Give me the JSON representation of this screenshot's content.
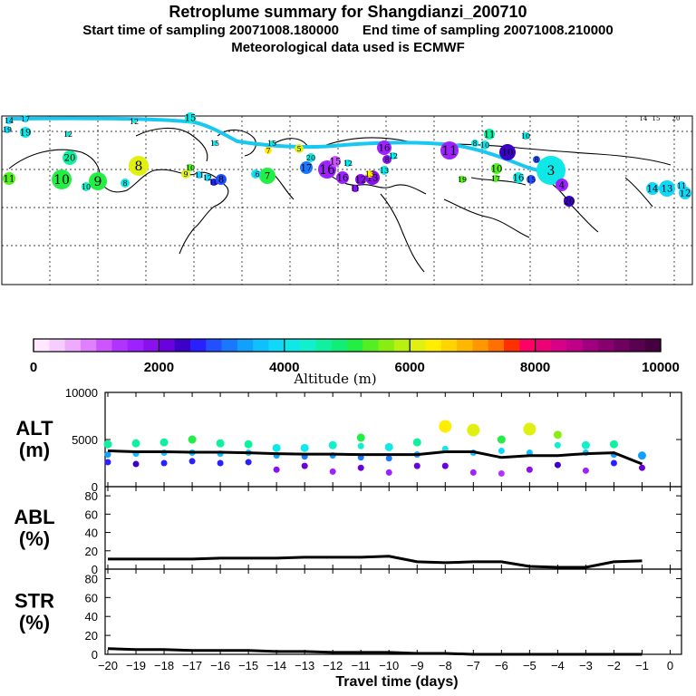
{
  "header": {
    "title": "Retroplume summary for Shangdianzi_200710",
    "start": "Start time of sampling 20071008.180000",
    "end": "End time of sampling 20071008.210000",
    "met": "Meteorological data used is ECMWF"
  },
  "colorbar": {
    "label": "Altitude  (m)",
    "ticks": [
      "0",
      "2000",
      "4000",
      "6000",
      "8000",
      "10000"
    ],
    "colors": [
      "#ffe8ff",
      "#f7ccff",
      "#eeaaff",
      "#e080ff",
      "#cc55ff",
      "#b033ff",
      "#9d22ff",
      "#8a11ee",
      "#6a00dd",
      "#3c00c8",
      "#2a20ff",
      "#2250ff",
      "#1878ff",
      "#12a0ff",
      "#0fc0ff",
      "#10d8f8",
      "#10e8e8",
      "#10f0cc",
      "#10f0a0",
      "#10ee78",
      "#22ee44",
      "#55ee22",
      "#88ee10",
      "#b8f010",
      "#e0f010",
      "#ffee00",
      "#ffd400",
      "#ffb800",
      "#ff9800",
      "#ff7000",
      "#ff3000",
      "#ff0066",
      "#ee0077",
      "#d80088",
      "#c00088",
      "#a00080",
      "#880070",
      "#700060",
      "#5a0050",
      "#440040"
    ]
  },
  "map": {
    "labels": [
      "14",
      "17",
      "19",
      "19",
      "12",
      "12",
      "15",
      "15",
      "15",
      "20",
      "11",
      "10",
      "9",
      "10",
      "8",
      "8",
      "9",
      "10",
      "11",
      "12",
      "10",
      "8",
      "6",
      "7",
      "7",
      "6",
      "5",
      "20",
      "17",
      "16",
      "16",
      "15",
      "12",
      "16",
      "8",
      "12",
      "13",
      "13",
      "11",
      "11",
      "10",
      "10",
      "8",
      "3",
      "4",
      "20",
      "10",
      "17",
      "16",
      "15",
      "19",
      "14",
      "13",
      "12",
      "11",
      "10",
      "8",
      "12",
      "13",
      "11"
    ]
  },
  "chart_data": [
    {
      "type": "scatter",
      "panel": "ALT",
      "ylabel_line1": "ALT",
      "ylabel_line2": "(m)",
      "ylim": [
        0,
        10000
      ],
      "yticks": [
        "0",
        "5000",
        "10000"
      ],
      "x": [
        -20,
        -19,
        -18,
        -17,
        -16,
        -15,
        -14,
        -13,
        -12,
        -11,
        -10,
        -9,
        -8,
        -7,
        -6,
        -5,
        -4,
        -3,
        -2,
        -1
      ],
      "median_line": [
        3800,
        3700,
        3700,
        3650,
        3650,
        3600,
        3500,
        3450,
        3450,
        3400,
        3400,
        3400,
        3700,
        3700,
        3100,
        3300,
        3300,
        3500,
        3600,
        2400
      ],
      "clusters": [
        [
          4500,
          3400,
          2600
        ],
        [
          4600,
          3500,
          2400
        ],
        [
          4700,
          3600,
          2500
        ],
        [
          5000,
          3600,
          2700
        ],
        [
          4600,
          3500,
          2500
        ],
        [
          4500,
          3600,
          2600
        ],
        [
          4100,
          3300,
          1800
        ],
        [
          4100,
          3200,
          2200
        ],
        [
          4400,
          3300,
          1600
        ],
        [
          5200,
          4300,
          3100,
          2000
        ],
        [
          4200,
          3000,
          1500
        ],
        [
          4700,
          3400,
          2200
        ],
        [
          6400,
          4000,
          2200
        ],
        [
          6000,
          3600,
          1500
        ],
        [
          5000,
          3800,
          1400
        ],
        [
          6100,
          3600,
          1800
        ],
        [
          5500,
          4400,
          2300
        ],
        [
          4400,
          3600,
          1700
        ],
        [
          4500,
          3400,
          2500
        ],
        [
          3300,
          2000
        ]
      ]
    },
    {
      "type": "line",
      "panel": "ABL",
      "ylabel_line1": "ABL",
      "ylabel_line2": "(%)",
      "ylim": [
        0,
        90
      ],
      "yticks": [
        "0",
        "20",
        "40",
        "60",
        "80"
      ],
      "x": [
        -20,
        -19,
        -18,
        -17,
        -16,
        -15,
        -14,
        -13,
        -12,
        -11,
        -10,
        -9,
        -8,
        -7,
        -6,
        -5,
        -4,
        -3,
        -2,
        -1
      ],
      "values": [
        11,
        11,
        11,
        11,
        12,
        12,
        12,
        13,
        13,
        13,
        14,
        8,
        7,
        8,
        8,
        3,
        2,
        2,
        8,
        9
      ]
    },
    {
      "type": "line",
      "panel": "STR",
      "ylabel_line1": "STR",
      "ylabel_line2": "(%)",
      "ylim": [
        0,
        90
      ],
      "yticks": [
        "0",
        "20",
        "40",
        "60",
        "80"
      ],
      "x": [
        -20,
        -19,
        -18,
        -17,
        -16,
        -15,
        -14,
        -13,
        -12,
        -11,
        -10,
        -9,
        -8,
        -7,
        -6,
        -5,
        -4,
        -3,
        -2,
        -1
      ],
      "values": [
        6,
        5,
        5,
        4,
        4,
        4,
        3,
        3,
        2,
        2,
        2,
        1,
        1,
        0,
        0,
        0,
        0,
        0,
        0,
        0
      ],
      "xlabel": "Travel time (days)",
      "xticks": [
        "−20",
        "−19",
        "−18",
        "−17",
        "−16",
        "−15",
        "−14",
        "−13",
        "−12",
        "−11",
        "−10",
        "−9",
        "−8",
        "−7",
        "−6",
        "−5",
        "−4",
        "−3",
        "−2",
        "−1",
        "0"
      ]
    }
  ]
}
